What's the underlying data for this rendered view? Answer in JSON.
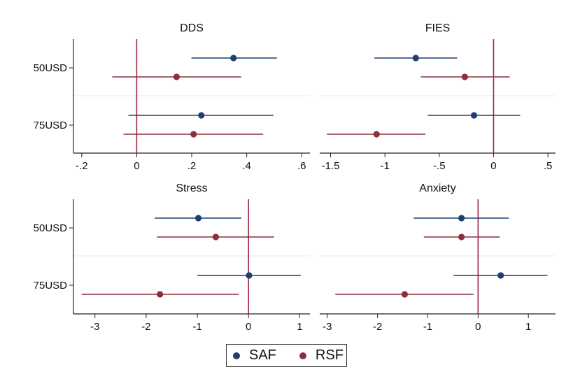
{
  "colors": {
    "SAF": "#1f3f6e",
    "RSF": "#8a2f3c",
    "zero_line": "#9e2a48",
    "axis": "#222222",
    "grid": "#e8e8e8"
  },
  "legend": {
    "items": [
      {
        "label": "SAF",
        "series": "SAF"
      },
      {
        "label": "RSF",
        "series": "RSF"
      }
    ]
  },
  "chart_data": [
    {
      "type": "scatter",
      "subtype": "coefficient-plot",
      "title": "DDS",
      "categories": [
        "50USD",
        "75USD"
      ],
      "xticks": [
        -0.2,
        0,
        0.2,
        0.4,
        0.6
      ],
      "xtick_labels": [
        "-.2",
        "0",
        ".2",
        ".4",
        ".6"
      ],
      "xlim": [
        -0.23,
        0.63
      ],
      "reference_line": 0,
      "series": [
        {
          "name": "SAF",
          "points": [
            {
              "category": "50USD",
              "estimate": 0.352,
              "ci_low": 0.199,
              "ci_high": 0.51
            },
            {
              "category": "75USD",
              "estimate": 0.235,
              "ci_low": -0.03,
              "ci_high": 0.497
            }
          ]
        },
        {
          "name": "RSF",
          "points": [
            {
              "category": "50USD",
              "estimate": 0.145,
              "ci_low": -0.089,
              "ci_high": 0.38
            },
            {
              "category": "75USD",
              "estimate": 0.207,
              "ci_low": -0.048,
              "ci_high": 0.46
            }
          ]
        }
      ]
    },
    {
      "type": "scatter",
      "subtype": "coefficient-plot",
      "title": "FIES",
      "categories": [
        "50USD",
        "75USD"
      ],
      "xticks": [
        -1.5,
        -1,
        -0.5,
        0,
        0.5
      ],
      "xtick_labels": [
        "-1.5",
        "-1",
        "-.5",
        "0",
        ".5"
      ],
      "xlim": [
        -1.6,
        0.57
      ],
      "reference_line": 0,
      "series": [
        {
          "name": "SAF",
          "points": [
            {
              "category": "50USD",
              "estimate": -0.716,
              "ci_low": -1.097,
              "ci_high": -0.335
            },
            {
              "category": "75USD",
              "estimate": -0.18,
              "ci_low": -0.606,
              "ci_high": 0.245
            }
          ]
        },
        {
          "name": "RSF",
          "points": [
            {
              "category": "50USD",
              "estimate": -0.265,
              "ci_low": -0.67,
              "ci_high": 0.148
            },
            {
              "category": "75USD",
              "estimate": -1.077,
              "ci_low": -1.535,
              "ci_high": -0.626
            }
          ]
        }
      ]
    },
    {
      "type": "scatter",
      "subtype": "coefficient-plot",
      "title": "Stress",
      "categories": [
        "50USD",
        "75USD"
      ],
      "xticks": [
        -3,
        -2,
        -1,
        0,
        1
      ],
      "xtick_labels": [
        "-3",
        "-2",
        "-1",
        "0",
        "1"
      ],
      "xlim": [
        -3.42,
        1.2
      ],
      "reference_line": 0,
      "series": [
        {
          "name": "SAF",
          "points": [
            {
              "category": "50USD",
              "estimate": -0.98,
              "ci_low": -1.83,
              "ci_high": -0.14
            },
            {
              "category": "75USD",
              "estimate": 0.01,
              "ci_low": -1.0,
              "ci_high": 1.02
            }
          ]
        },
        {
          "name": "RSF",
          "points": [
            {
              "category": "50USD",
              "estimate": -0.64,
              "ci_low": -1.79,
              "ci_high": 0.5
            },
            {
              "category": "75USD",
              "estimate": -1.73,
              "ci_low": -3.26,
              "ci_high": -0.19
            }
          ]
        }
      ]
    },
    {
      "type": "scatter",
      "subtype": "coefficient-plot",
      "title": "Anxiety",
      "categories": [
        "50USD",
        "75USD"
      ],
      "xticks": [
        -3,
        -2,
        -1,
        0,
        1
      ],
      "xtick_labels": [
        "-3",
        "-2",
        "-1",
        "0",
        "1"
      ],
      "xlim": [
        -3.15,
        1.54
      ],
      "reference_line": 0,
      "series": [
        {
          "name": "SAF",
          "points": [
            {
              "category": "50USD",
              "estimate": -0.33,
              "ci_low": -1.28,
              "ci_high": 0.61
            },
            {
              "category": "75USD",
              "estimate": 0.45,
              "ci_low": -0.49,
              "ci_high": 1.38
            }
          ]
        },
        {
          "name": "RSF",
          "points": [
            {
              "category": "50USD",
              "estimate": -0.33,
              "ci_low": -1.08,
              "ci_high": 0.43
            },
            {
              "category": "75USD",
              "estimate": -1.46,
              "ci_low": -2.84,
              "ci_high": -0.09
            }
          ]
        }
      ]
    }
  ]
}
